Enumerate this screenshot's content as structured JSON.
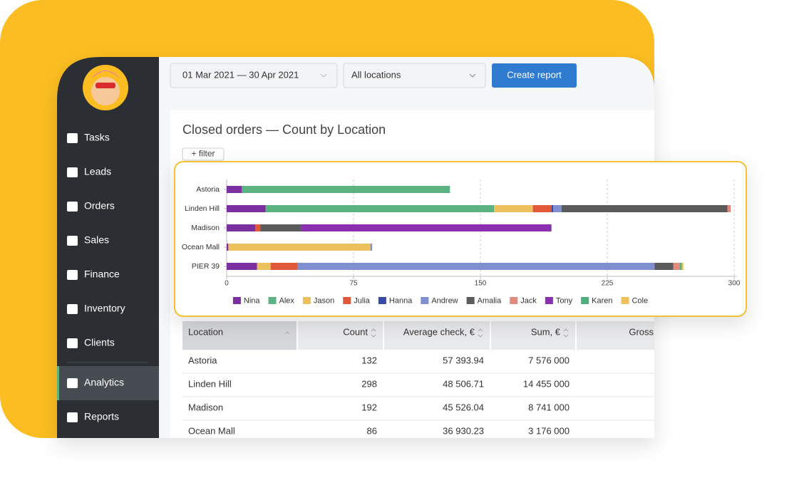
{
  "sidebar": {
    "menu": [
      "Tasks",
      "Leads",
      "Orders",
      "Sales",
      "Finance",
      "Inventory",
      "Clients",
      "Analytics",
      "Reports"
    ]
  },
  "toolbar": {
    "date_range": "01 Mar 2021 — 30 Apr 2021",
    "location": "All locations",
    "button": "Create report"
  },
  "card": {
    "filter": "+ filter"
  },
  "chart_data": {
    "type": "bar",
    "orientation": "horizontal",
    "stacked": true,
    "title": "Closed orders — Count by Location",
    "categories": [
      "Astoria",
      "Linden Hill",
      "Madison",
      "Ocean Mall",
      "PIER 39"
    ],
    "series": [
      {
        "name": "Nina",
        "color": "#7b2fa0",
        "values": [
          9,
          23,
          17,
          1,
          18
        ]
      },
      {
        "name": "Alex",
        "color": "#5bb381",
        "values": [
          123,
          135,
          0,
          0,
          0
        ]
      },
      {
        "name": "Jason",
        "color": "#ecc05d",
        "values": [
          0,
          23,
          0,
          84,
          8
        ]
      },
      {
        "name": "Julia",
        "color": "#e05a3a",
        "values": [
          0,
          11,
          3,
          0,
          16
        ]
      },
      {
        "name": "Hanna",
        "color": "#3a4aa8",
        "values": [
          0,
          1,
          0,
          0,
          0
        ]
      },
      {
        "name": "Andrew",
        "color": "#7f8fcf",
        "values": [
          0,
          5,
          0,
          1,
          211
        ]
      },
      {
        "name": "Amalia",
        "color": "#5b5b5b",
        "values": [
          0,
          98,
          24,
          0,
          11
        ]
      },
      {
        "name": "Jack",
        "color": "#e28a7e",
        "values": [
          0,
          2,
          0,
          0,
          4
        ]
      },
      {
        "name": "Tony",
        "color": "#8a2fb0",
        "values": [
          0,
          0,
          148,
          0,
          0
        ]
      },
      {
        "name": "Karen",
        "color": "#4caf7d",
        "values": [
          0,
          0,
          0,
          0,
          1
        ]
      },
      {
        "name": "Cole",
        "color": "#f0c05a",
        "values": [
          0,
          0,
          0,
          0,
          1
        ]
      }
    ],
    "xlim": [
      0,
      300
    ],
    "xticks": [
      0,
      75,
      150,
      225,
      300
    ],
    "grid": true,
    "legend": "bottom"
  },
  "table": {
    "columns": [
      "Location",
      "Count",
      "Average check, €",
      "Sum, €",
      "Gross"
    ],
    "rows": [
      [
        "Astoria",
        132,
        "57 393.94",
        "7 576 000"
      ],
      [
        "Linden Hill",
        298,
        "48 506.71",
        "14 455 000"
      ],
      [
        "Madison",
        192,
        "45 526.04",
        "8 741 000"
      ],
      [
        "Ocean Mall",
        86,
        "36 930.23",
        "3 176 000"
      ]
    ]
  }
}
